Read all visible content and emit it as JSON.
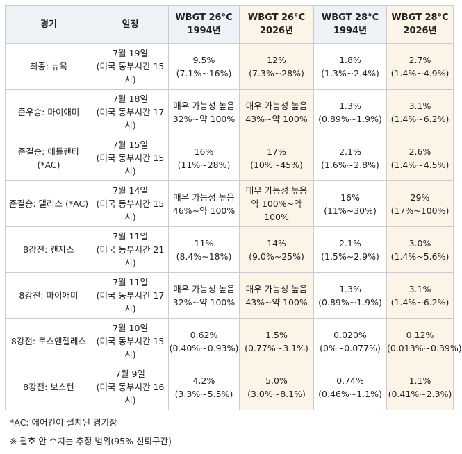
{
  "table": {
    "header": [
      "경기",
      "일정",
      [
        "WBGT 26°C",
        "1994년"
      ],
      [
        "WBGT 26°C",
        "2026년"
      ],
      [
        "WBGT 28°C",
        "1994년"
      ],
      [
        "WBGT 28°C",
        "2026년"
      ]
    ],
    "rows": [
      [
        "최종: 뉴욕",
        [
          "7월 19일",
          "(미국 동부시간 15시)"
        ],
        [
          "9.5%",
          "(7.1%~16%)"
        ],
        [
          "12%",
          "(7.3%~28%)"
        ],
        [
          "1.8%",
          "(1.3%~2.4%)"
        ],
        [
          "2.7%",
          "(1.4%~4.9%)"
        ]
      ],
      [
        "준우승: 마이애미",
        [
          "7월 18일",
          "(미국 동부시간 17시)"
        ],
        [
          "매우 가능성 높음",
          "32%~약 100%"
        ],
        [
          "매우 가능성 높음",
          "43%~약 100%"
        ],
        [
          "1.3%",
          "(0.89%~1.9%)"
        ],
        [
          "3.1%",
          "(1.4%~6.2%)"
        ]
      ],
      [
        "준결승: 애틀랜타 (*AC)",
        [
          "7월 15일",
          "(미국 동부시간 15시)"
        ],
        [
          "16%",
          "(11%~28%)"
        ],
        [
          "17%",
          "(10%~45%)"
        ],
        [
          "2.1%",
          "(1.6%~2.8%)"
        ],
        [
          "2.6%",
          "(1.4%~4.5%)"
        ]
      ],
      [
        "준결승: 댈러스 (*AC)",
        [
          "7월 14일",
          "(미국 동부시간 15시)"
        ],
        [
          "매우 가능성 높음",
          "46%~약 100%"
        ],
        [
          "매우 가능성 높음",
          "약 100%~약 100%"
        ],
        [
          "16%",
          "(11%~30%)"
        ],
        [
          "29%",
          "(17%~100%)"
        ]
      ],
      [
        "8강전: 캔자스",
        [
          "7월 11일",
          "(미국 동부시간 21시)"
        ],
        [
          "11%",
          "(8.4%~18%)"
        ],
        [
          "14%",
          "(9.0%~25%)"
        ],
        [
          "2.1%",
          "(1.5%~2.9%)"
        ],
        [
          "3.0%",
          "(1.4%~5.6%)"
        ]
      ],
      [
        "8강전: 마이애미",
        [
          "7월 11일",
          "(미국 동부시간 17시)"
        ],
        [
          "매우 가능성 높음",
          "32%~약 100%"
        ],
        [
          "매우 가능성 높음",
          "43%~약 100%"
        ],
        [
          "1.3%",
          "(0.89%~1.9%)"
        ],
        [
          "3.1%",
          "(1.4%~6.2%)"
        ]
      ],
      [
        "8강전: 로스앤젤레스",
        [
          "7월 10일",
          "(미국 동부시간 15시)"
        ],
        [
          "0.62%",
          "(0.40%~0.93%)"
        ],
        [
          "1.5%",
          "(0.77%~3.1%)"
        ],
        [
          "0.020%",
          "(0%~0.077%)"
        ],
        [
          "0.12%",
          "(0.013%~0.39%)"
        ]
      ],
      [
        "8강전: 보스턴",
        [
          "7월 9일",
          "(미국 동부시간 16시)"
        ],
        [
          "4.2%",
          "(3.3%~5.5%)"
        ],
        [
          "5.0%",
          "(3.0%~8.1%)"
        ],
        [
          "0.74%",
          "(0.46%~1.1%)"
        ],
        [
          "1.1%",
          "(0.41%~2.3%)"
        ]
      ]
    ]
  },
  "footnotes": [
    "*AC: 에어컨이 설치된 경기장",
    "※ 괄호 안 수치는 추정 범위(95% 신뢰구간)"
  ]
}
